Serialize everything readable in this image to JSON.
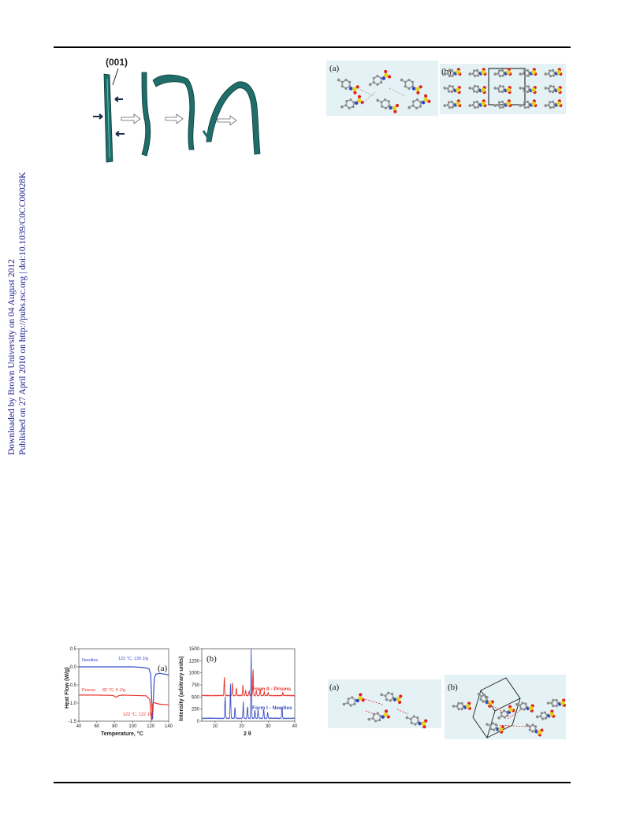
{
  "sidebar": {
    "line1": "Downloaded by Brown University on 04 August 2012",
    "line2": "Published on 27 April 2010 on http://pubs.rsc.org | doi:10.1039/C0CC00028K"
  },
  "fig_crystal": {
    "label": "(001)"
  },
  "fig_packing": {
    "label_a": "(a)",
    "label_b": "(b)"
  },
  "fig_packing2": {
    "label_a": "(a)",
    "label_b": "(b)"
  },
  "colors": {
    "needles": "#3b4fc4",
    "prisms": "#e8322b",
    "crystal": "#1f6e6a",
    "panel": "#e4f1f5"
  },
  "chart_data": [
    {
      "type": "line",
      "panel": "(a)",
      "xlabel": "Temperature, °C",
      "ylabel": "Heat Flow (W/g)",
      "xlim": [
        40,
        140
      ],
      "ylim": [
        -1.5,
        0.5
      ],
      "xticks": [
        "40",
        "60",
        "80",
        "100",
        "120",
        "140"
      ],
      "yticks": [
        "0.5",
        "0.0",
        "-0.5",
        "-1.0",
        "-1.5"
      ],
      "series": [
        {
          "name": "Needles",
          "x": [
            40,
            60,
            80,
            100,
            112,
            118,
            120,
            121,
            122,
            123,
            124,
            126,
            130,
            140
          ],
          "y": [
            0.0,
            0.0,
            0.0,
            0.0,
            -0.02,
            -0.05,
            -0.2,
            -0.8,
            -1.45,
            -0.9,
            -0.3,
            -0.2,
            -0.18,
            -0.22
          ]
        },
        {
          "name": "Prisms",
          "x": [
            40,
            60,
            78,
            82,
            84,
            88,
            100,
            115,
            119,
            120,
            121,
            122,
            123,
            125,
            130,
            140
          ],
          "y": [
            -0.78,
            -0.78,
            -0.79,
            -0.84,
            -0.8,
            -0.78,
            -0.79,
            -0.8,
            -0.9,
            -1.2,
            -1.48,
            -1.1,
            -0.98,
            -1.0,
            -1.03,
            -1.05
          ]
        }
      ],
      "annotations": [
        "122 °C, 130 J/g",
        "Prisms",
        "82 °C, 5 J/g",
        "122 °C, 122 J/g"
      ]
    },
    {
      "type": "line",
      "panel": "(b)",
      "xlabel": "2 θ",
      "ylabel": "Intensity (arbitrary units)",
      "xlim": [
        5,
        40
      ],
      "ylim": [
        0,
        1500
      ],
      "xticks": [
        "10",
        "20",
        "30",
        "40"
      ],
      "yticks": [
        "0",
        "250",
        "500",
        "750",
        "1000",
        "1250",
        "1500"
      ],
      "series": [
        {
          "name": "Form II - Prisms",
          "baseline": 530,
          "peaks": [
            [
              13.5,
              950
            ],
            [
              16.5,
              820
            ],
            [
              18,
              700
            ],
            [
              20.5,
              780
            ],
            [
              21.5,
              650
            ],
            [
              22.8,
              640
            ],
            [
              24.3,
              1120
            ],
            [
              25.5,
              640
            ],
            [
              27,
              680
            ],
            [
              28.5,
              620
            ],
            [
              30,
              600
            ],
            [
              35.5,
              600
            ]
          ]
        },
        {
          "name": "Form I - Needles",
          "baseline": 60,
          "peaks": [
            [
              13.8,
              550
            ],
            [
              15.8,
              780
            ],
            [
              17.5,
              300
            ],
            [
              20.6,
              400
            ],
            [
              22.2,
              330
            ],
            [
              23.6,
              1500
            ],
            [
              25,
              250
            ],
            [
              26.2,
              260
            ],
            [
              28.3,
              280
            ],
            [
              29.8,
              200
            ],
            [
              35.2,
              300
            ]
          ]
        }
      ]
    }
  ]
}
